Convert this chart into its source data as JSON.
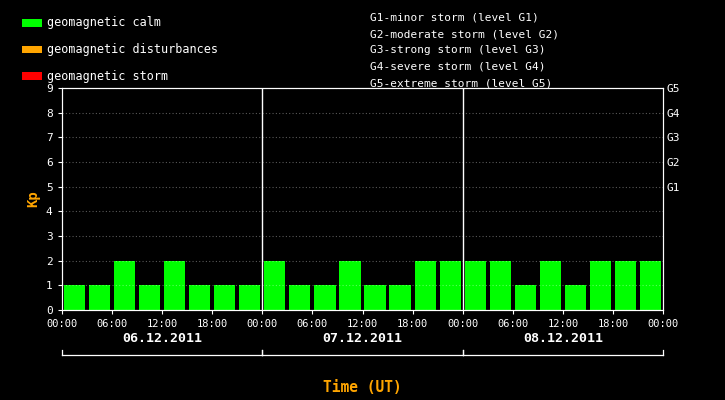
{
  "background_color": "#000000",
  "plot_bg_color": "#000000",
  "bar_color_calm": "#00ff00",
  "bar_color_disturbance": "#ffa500",
  "bar_color_storm": "#ff0000",
  "axis_label_color": "#ffffff",
  "tick_label_color": "#ffffff",
  "kp_ylabel_color": "#ffa500",
  "xlabel_color": "#ffa500",
  "kp_values": [
    1,
    1,
    2,
    1,
    2,
    1,
    1,
    1,
    2,
    1,
    1,
    2,
    1,
    1,
    2,
    2,
    2,
    2,
    1,
    2,
    1,
    2,
    2,
    2
  ],
  "legend_items": [
    {
      "color": "#00ff00",
      "label": "geomagnetic calm"
    },
    {
      "color": "#ffa500",
      "label": "geomagnetic disturbances"
    },
    {
      "color": "#ff0000",
      "label": "geomagnetic storm"
    }
  ],
  "right_labels": [
    {
      "y": 9,
      "text": "G5"
    },
    {
      "y": 8,
      "text": "G4"
    },
    {
      "y": 7,
      "text": "G3"
    },
    {
      "y": 6,
      "text": "G2"
    },
    {
      "y": 5,
      "text": "G1"
    }
  ],
  "right_annotations": [
    "G1-minor storm (level G1)",
    "G2-moderate storm (level G2)",
    "G3-strong storm (level G3)",
    "G4-severe storm (level G4)",
    "G5-extreme storm (level G5)"
  ],
  "ylim": [
    0,
    9
  ],
  "day_labels": [
    "06.12.2011",
    "07.12.2011",
    "08.12.2011"
  ],
  "xlabel": "Time (UT)",
  "ylabel": "Kp",
  "time_ticks": [
    "00:00",
    "06:00",
    "12:00",
    "18:00",
    "00:00",
    "06:00",
    "12:00",
    "18:00",
    "00:00",
    "06:00",
    "12:00",
    "18:00",
    "00:00"
  ],
  "grid_color": "#ffffff",
  "grid_alpha": 0.35,
  "separator_color": "#ffffff",
  "calm_threshold": 4,
  "disturbance_threshold": 5
}
